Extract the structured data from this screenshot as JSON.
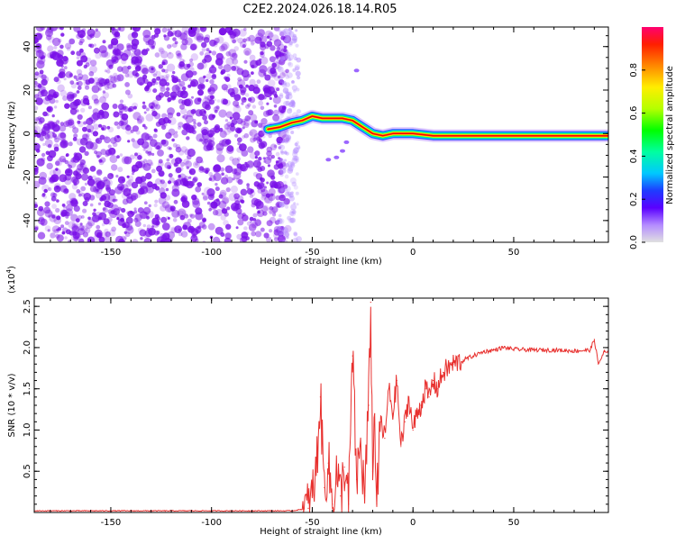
{
  "title": "C2E2.2024.026.18.14.R05",
  "colors": {
    "snr_line": "#e8302e",
    "scatter_dot": "#7a10e8",
    "trace_center": "#ff0000",
    "colormap": [
      "#b8b8ff",
      "#5a00ff",
      "#1e3cff",
      "#00c8ff",
      "#00ff60",
      "#b4ff00",
      "#ffee00",
      "#ff8800",
      "#ff1e00",
      "#ff0070"
    ]
  },
  "chart_data": [
    {
      "type": "heatmap",
      "name": "spectrogram",
      "xlabel": "Height of straight line (km)",
      "ylabel": "Frequency (Hz)",
      "xlim": [
        -188,
        97
      ],
      "ylim": [
        -50,
        49
      ],
      "xticks": [
        -150,
        -100,
        -50,
        0,
        50
      ],
      "yticks": [
        -40,
        -20,
        0,
        20,
        40
      ],
      "noise_region_x": [
        -188,
        -62
      ],
      "trace_points": [
        {
          "x": -72,
          "y": 2
        },
        {
          "x": -66,
          "y": 3
        },
        {
          "x": -60,
          "y": 5
        },
        {
          "x": -55,
          "y": 6
        },
        {
          "x": -50,
          "y": 8
        },
        {
          "x": -45,
          "y": 7
        },
        {
          "x": -40,
          "y": 7
        },
        {
          "x": -35,
          "y": 7
        },
        {
          "x": -30,
          "y": 6
        },
        {
          "x": -25,
          "y": 3
        },
        {
          "x": -20,
          "y": 0
        },
        {
          "x": -15,
          "y": -1
        },
        {
          "x": -10,
          "y": 0
        },
        {
          "x": -5,
          "y": 0
        },
        {
          "x": 0,
          "y": 0
        },
        {
          "x": 10,
          "y": -1
        },
        {
          "x": 30,
          "y": -1
        },
        {
          "x": 60,
          "y": -1
        },
        {
          "x": 97,
          "y": -1
        }
      ],
      "colorbar": {
        "label": "Normalized spectral amplitude",
        "min": 0,
        "max": 1,
        "ticks": [
          "0.0",
          "0.2",
          "0.4",
          "0.6",
          "0.8"
        ]
      }
    },
    {
      "type": "line",
      "name": "snr",
      "xlabel": "Height of straight line (km)",
      "ylabel": "SNR (10 * v/v)",
      "y_multiplier": "(x10",
      "y_multiplier_exp": "4",
      "y_multiplier_close": ")",
      "xlim": [
        -188,
        97
      ],
      "ylim": [
        0,
        2.6
      ],
      "xticks": [
        -150,
        -100,
        -50,
        0,
        50
      ],
      "yticks": [
        "0.5",
        "1.0",
        "1.5",
        "2.0",
        "2.5"
      ],
      "series": [
        {
          "name": "SNR",
          "x": [
            -188,
            -120,
            -60,
            -52,
            -50,
            -48,
            -46,
            -44,
            -42,
            -40,
            -38,
            -36,
            -34,
            -32,
            -30,
            -28,
            -26,
            -24,
            -22,
            -21,
            -20,
            -19,
            -18,
            -16,
            -14,
            -12,
            -10,
            -8,
            -6,
            -4,
            -2,
            0,
            2,
            4,
            6,
            8,
            10,
            12,
            15,
            20,
            25,
            30,
            35,
            40,
            45,
            50,
            60,
            70,
            80,
            88,
            90,
            92,
            95,
            97
          ],
          "y": [
            0.02,
            0.02,
            0.02,
            0.05,
            0.2,
            0.5,
            1.4,
            0.3,
            0.6,
            0.1,
            0.5,
            0.2,
            0.55,
            0.1,
            1.9,
            0.4,
            0.8,
            0.2,
            1.3,
            2.55,
            0.5,
            1.2,
            0.1,
            1.1,
            0.9,
            1.5,
            1.2,
            1.6,
            0.8,
            1.1,
            1.4,
            1.0,
            1.2,
            1.3,
            1.5,
            1.4,
            1.6,
            1.5,
            1.7,
            1.8,
            1.85,
            1.9,
            1.95,
            1.97,
            2.0,
            1.98,
            1.97,
            1.97,
            1.96,
            1.97,
            2.1,
            1.8,
            1.95,
            1.93
          ]
        }
      ]
    }
  ]
}
